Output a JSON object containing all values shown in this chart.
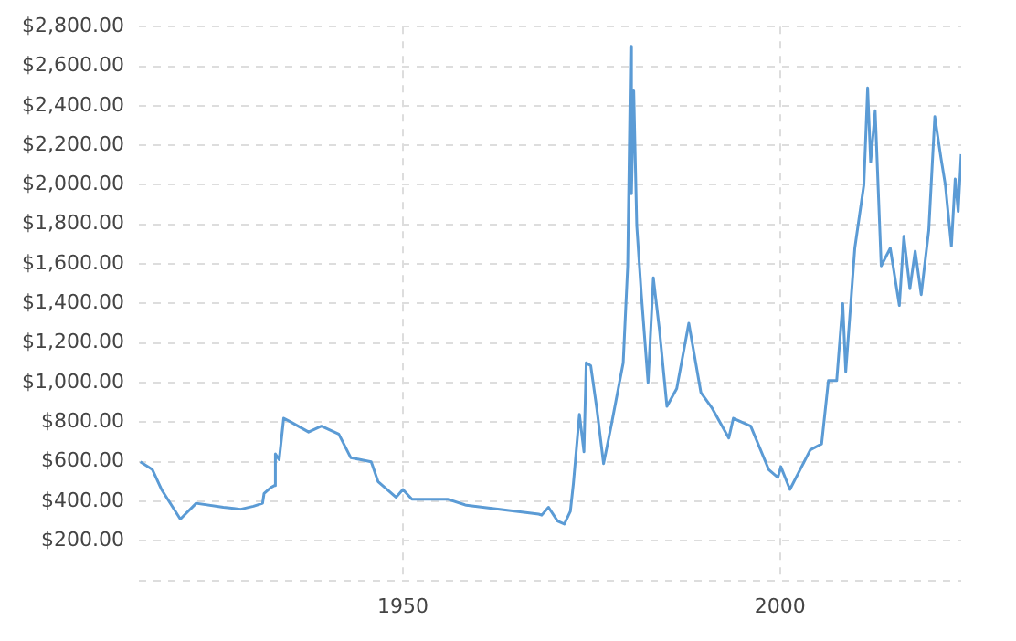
{
  "chart_data": {
    "type": "line",
    "color": "#5b9bd5",
    "grid": true,
    "marker": "none",
    "line_style": "solid",
    "xlim": [
      1915,
      2024
    ],
    "xticks": [
      1950,
      2000
    ],
    "ylim": [
      0,
      2800
    ],
    "yticks": [
      {
        "value": 0,
        "label": null
      },
      {
        "value": 200,
        "label": "$200.00"
      },
      {
        "value": 400,
        "label": "$400.00"
      },
      {
        "value": 600,
        "label": "$600.00"
      },
      {
        "value": 800,
        "label": "$800.00"
      },
      {
        "value": 1000,
        "label": "$1,000.00"
      },
      {
        "value": 1200,
        "label": "$1,200.00"
      },
      {
        "value": 1400,
        "label": "$1,400.00"
      },
      {
        "value": 1600,
        "label": "$1,600.00"
      },
      {
        "value": 1800,
        "label": "$1,800.00"
      },
      {
        "value": 2000,
        "label": "$2,000.00"
      },
      {
        "value": 2200,
        "label": "$2,200.00"
      },
      {
        "value": 2400,
        "label": "$2,400.00"
      },
      {
        "value": 2600,
        "label": "$2,600.00"
      },
      {
        "value": 2800,
        "label": "$2,800.00"
      }
    ],
    "x": [
      1915.2,
      1916.8,
      1918,
      1920.5,
      1922.6,
      1926.2,
      1928.5,
      1930.2,
      1931.4,
      1931.6,
      1932.5,
      1933.0,
      1933.1,
      1933.6,
      1934.2,
      1935.2,
      1937.5,
      1939.2,
      1941.5,
      1943.1,
      1945.8,
      1946.7,
      1949.1,
      1950,
      1951.2,
      1956,
      1958.4,
      1968,
      1968.4,
      1969.3,
      1970.5,
      1971.4,
      1972.2,
      1972.6,
      1973.4,
      1974,
      1974.3,
      1974.9,
      1975.7,
      1976.6,
      1977.6,
      1979.2,
      1979.8,
      1980.2,
      1980.3,
      1980.6,
      1981,
      1981.6,
      1982.5,
      1983.2,
      1984,
      1985,
      1986.3,
      1987.9,
      1989.5,
      1991,
      1993.2,
      1993.8,
      1996.1,
      1998.5,
      1999.7,
      2000.1,
      2001.3,
      2004,
      2005.5,
      2006.4,
      2007.5,
      2008.3,
      2008.7,
      2009.9,
      2011.1,
      2011.6,
      2012,
      2012.6,
      2013.4,
      2014.6,
      2015.8,
      2016.4,
      2017.2,
      2017.9,
      2018.7,
      2019.7,
      2020.5,
      2021.3,
      2021.9,
      2022.7,
      2023.2,
      2023.6,
      2024
    ],
    "values": [
      600,
      560,
      460,
      310,
      390,
      370,
      360,
      375,
      390,
      440,
      470,
      480,
      640,
      610,
      820,
      800,
      750,
      780,
      740,
      620,
      600,
      500,
      420,
      460,
      410,
      410,
      380,
      335,
      330,
      370,
      300,
      285,
      350,
      490,
      840,
      650,
      1100,
      1085,
      870,
      590,
      780,
      1100,
      1590,
      2700,
      1955,
      2475,
      1795,
      1450,
      1000,
      1530,
      1270,
      880,
      970,
      1300,
      950,
      870,
      720,
      820,
      780,
      560,
      520,
      575,
      460,
      660,
      690,
      1010,
      1010,
      1400,
      1055,
      1680,
      2000,
      2490,
      2115,
      2375,
      1590,
      1680,
      1390,
      1740,
      1475,
      1665,
      1445,
      1770,
      2345,
      2140,
      2000,
      1690,
      2030,
      1865,
      2155
    ]
  }
}
